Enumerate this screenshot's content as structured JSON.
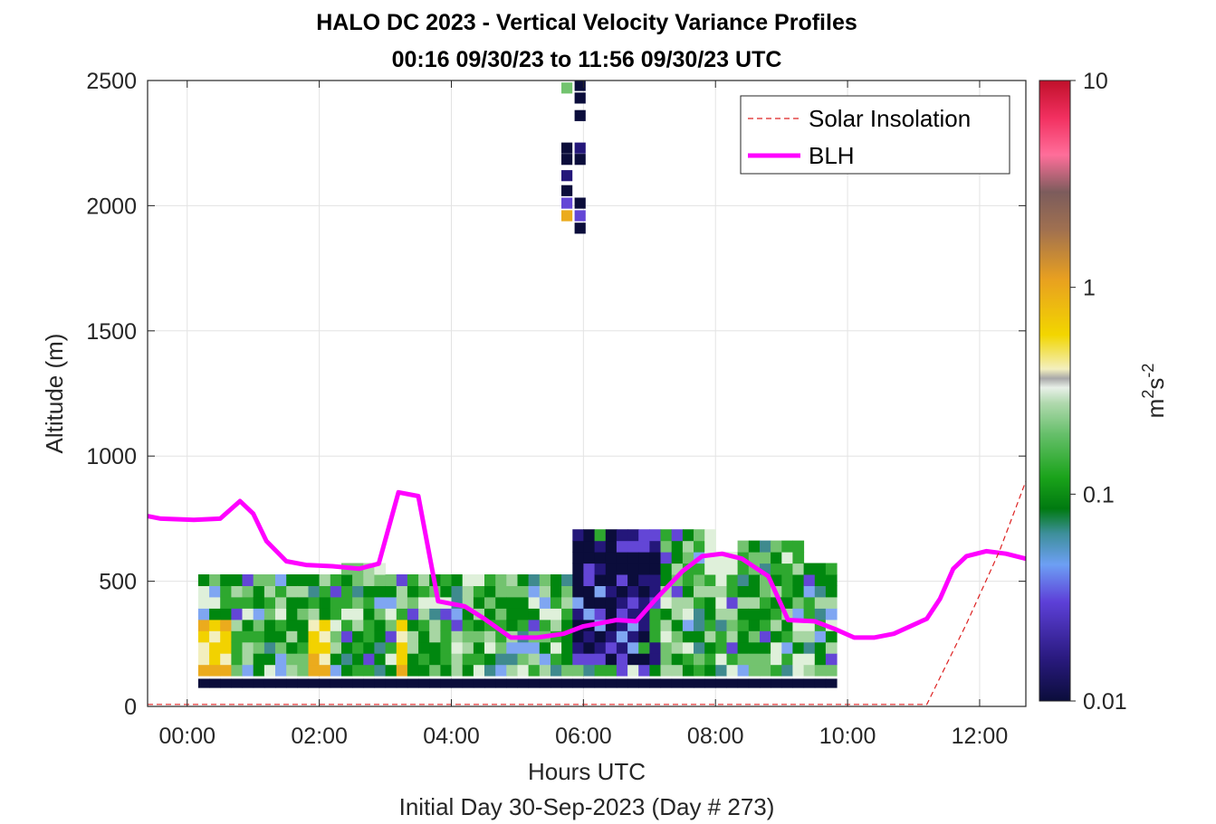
{
  "chart_data": {
    "type": "heatmap",
    "title_line1": "HALO DC 2023 - Vertical Velocity Variance Profiles",
    "title_line2": "00:16 09/30/23 to 11:56 09/30/23  UTC",
    "xlabel": "Hours UTC",
    "xlabel2": "Initial Day 30-Sep-2023 (Day # 273)",
    "ylabel": "Altitude (m)",
    "x_unit": "hours UTC",
    "xlim": [
      -0.6,
      12.7
    ],
    "ylim": [
      0,
      2500
    ],
    "x_ticks": [
      {
        "value": 0,
        "label": "00:00"
      },
      {
        "value": 2,
        "label": "02:00"
      },
      {
        "value": 4,
        "label": "04:00"
      },
      {
        "value": 6,
        "label": "06:00"
      },
      {
        "value": 8,
        "label": "08:00"
      },
      {
        "value": 10,
        "label": "10:00"
      },
      {
        "value": 12,
        "label": "12:00"
      }
    ],
    "y_ticks": [
      {
        "value": 0,
        "label": "0"
      },
      {
        "value": 500,
        "label": "500"
      },
      {
        "value": 1000,
        "label": "1000"
      },
      {
        "value": 1500,
        "label": "1500"
      },
      {
        "value": 2000,
        "label": "2000"
      },
      {
        "value": 2500,
        "label": "2500"
      }
    ],
    "grid": true,
    "legend_location": "top-right",
    "colorbar": {
      "scale": "log",
      "range": [
        0.01,
        10
      ],
      "ticks": [
        {
          "value": 0.01,
          "label": "0.01"
        },
        {
          "value": 0.1,
          "label": "0.1"
        },
        {
          "value": 1,
          "label": "1"
        },
        {
          "value": 10,
          "label": "10"
        }
      ],
      "label_base": "m",
      "label_exp1": "2",
      "label_mid": "s",
      "label_exp2": "-2"
    },
    "heatmap": {
      "x_start": 0.25,
      "x_step": 0.1667,
      "n_cols": 58,
      "y_start": 100,
      "y_step": 45,
      "n_rows": 12,
      "value_description": "vertical velocity variance (m2 s-2), approximated by colour"
    },
    "series": [
      {
        "name": "BLH",
        "color": "#ff00ff",
        "points": [
          [
            -0.6,
            760
          ],
          [
            -0.4,
            750
          ],
          [
            0.1,
            745
          ],
          [
            0.5,
            750
          ],
          [
            0.8,
            820
          ],
          [
            1.0,
            770
          ],
          [
            1.2,
            660
          ],
          [
            1.5,
            580
          ],
          [
            1.8,
            565
          ],
          [
            2.2,
            560
          ],
          [
            2.6,
            550
          ],
          [
            2.9,
            570
          ],
          [
            3.2,
            855
          ],
          [
            3.5,
            840
          ],
          [
            3.8,
            420
          ],
          [
            4.2,
            400
          ],
          [
            4.5,
            350
          ],
          [
            4.9,
            275
          ],
          [
            5.3,
            275
          ],
          [
            5.7,
            290
          ],
          [
            6.0,
            320
          ],
          [
            6.3,
            335
          ],
          [
            6.5,
            345
          ],
          [
            6.8,
            340
          ],
          [
            7.1,
            430
          ],
          [
            7.5,
            540
          ],
          [
            7.8,
            600
          ],
          [
            8.1,
            610
          ],
          [
            8.4,
            590
          ],
          [
            8.8,
            520
          ],
          [
            9.1,
            345
          ],
          [
            9.5,
            340
          ],
          [
            9.8,
            310
          ],
          [
            10.1,
            275
          ],
          [
            10.4,
            275
          ],
          [
            10.7,
            290
          ],
          [
            11.2,
            350
          ],
          [
            11.4,
            430
          ],
          [
            11.6,
            550
          ],
          [
            11.8,
            600
          ],
          [
            12.1,
            620
          ],
          [
            12.4,
            610
          ],
          [
            12.7,
            590
          ]
        ]
      },
      {
        "name": "Solar Insolation",
        "color": "#dd2222",
        "style": "dashed",
        "points": [
          [
            -0.6,
            8
          ],
          [
            11.2,
            8
          ],
          [
            11.8,
            330
          ],
          [
            12.3,
            620
          ],
          [
            12.7,
            900
          ]
        ]
      }
    ]
  }
}
